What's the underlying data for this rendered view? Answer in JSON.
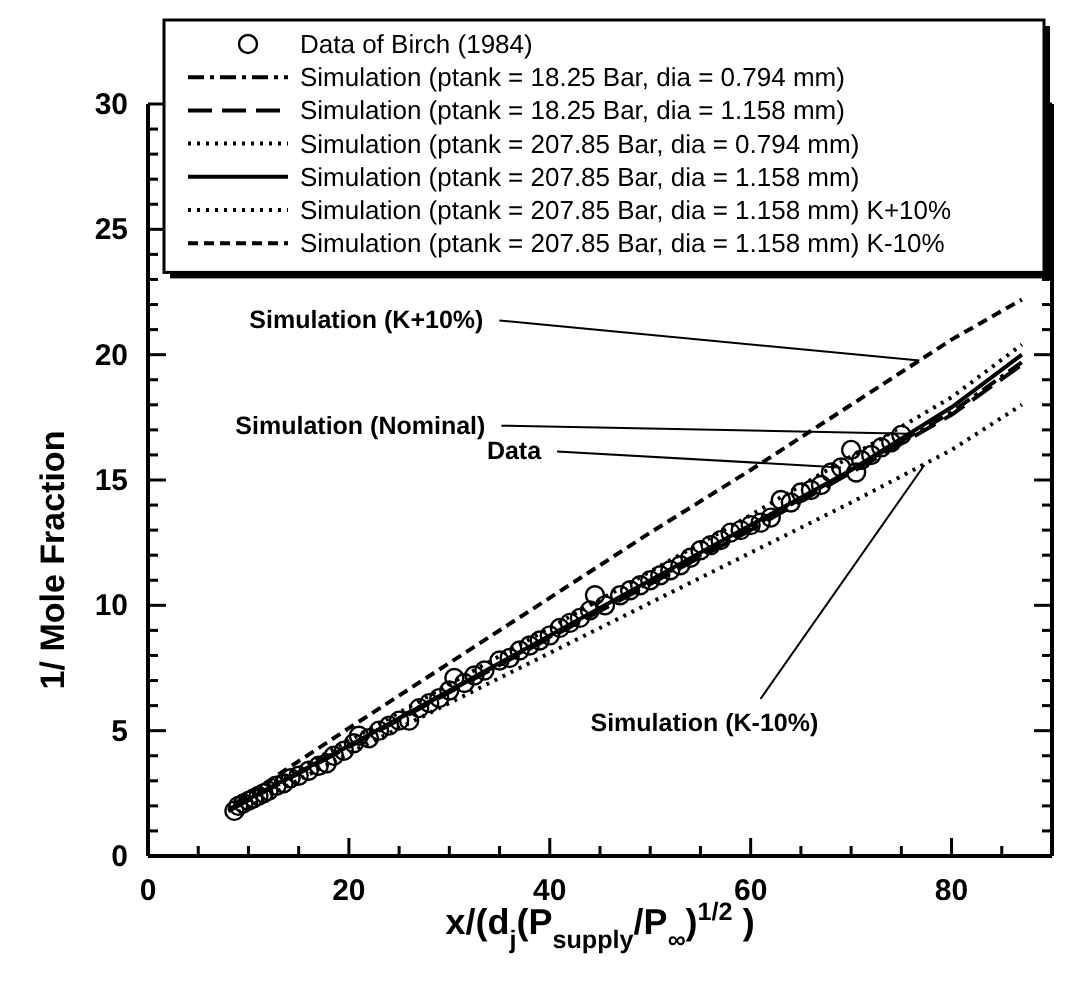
{
  "chart_data": {
    "type": "line",
    "xlabel": "x/(d$_{j}$(P$_{supply}$/P$_{∞}$)$^{1/2}$ )",
    "ylabel": "1/ Mole Fraction",
    "xlim": [
      0,
      90
    ],
    "ylim": [
      0,
      30
    ],
    "xticks": [
      0,
      {
        "value": 5,
        "label": null
      },
      {
        "value": 10,
        "label": null
      },
      {
        "value": 15,
        "label": null
      },
      20,
      {
        "value": 25,
        "label": null
      },
      {
        "value": 30,
        "label": null
      },
      {
        "value": 35,
        "label": null
      },
      40,
      {
        "value": 45,
        "label": null
      },
      {
        "value": 50,
        "label": null
      },
      {
        "value": 55,
        "label": null
      },
      60,
      {
        "value": 65,
        "label": null
      },
      {
        "value": 70,
        "label": null
      },
      {
        "value": 75,
        "label": null
      },
      80,
      {
        "value": 85,
        "label": null
      }
    ],
    "yticks": [
      0,
      {
        "value": 1,
        "label": null
      },
      {
        "value": 2,
        "label": null
      },
      {
        "value": 3,
        "label": null
      },
      {
        "value": 4,
        "label": null
      },
      5,
      {
        "value": 6,
        "label": null
      },
      {
        "value": 7,
        "label": null
      },
      {
        "value": 8,
        "label": null
      },
      {
        "value": 9,
        "label": null
      },
      10,
      {
        "value": 11,
        "label": null
      },
      {
        "value": 12,
        "label": null
      },
      {
        "value": 13,
        "label": null
      },
      {
        "value": 14,
        "label": null
      },
      15,
      {
        "value": 16,
        "label": null
      },
      {
        "value": 17,
        "label": null
      },
      {
        "value": 18,
        "label": null
      },
      {
        "value": 19,
        "label": null
      },
      20,
      {
        "value": 21,
        "label": null
      },
      {
        "value": 22,
        "label": null
      },
      {
        "value": 23,
        "label": null
      },
      {
        "value": 24,
        "label": null
      },
      25,
      {
        "value": 26,
        "label": null
      },
      {
        "value": 27,
        "label": null
      },
      {
        "value": 28,
        "label": null
      },
      {
        "value": 29,
        "label": null
      },
      30
    ],
    "grid": false,
    "legend": "top",
    "series": [
      {
        "name": "Data of Birch (1984)",
        "type": "scatter",
        "marker": "circle",
        "color": "#000000",
        "x": [
          8.6,
          9.0,
          9.5,
          10,
          10.5,
          11,
          11.5,
          12,
          12.8,
          13.5,
          14.2,
          15,
          16,
          17,
          17.8,
          18.5,
          19.5,
          20.5,
          21,
          22,
          23,
          24,
          25,
          26,
          27,
          28,
          29,
          30,
          30.5,
          31.5,
          32.5,
          33.5,
          35,
          36,
          37,
          38,
          39,
          40,
          41,
          42,
          43,
          44,
          44.5,
          45.5,
          47,
          48,
          49,
          50,
          51,
          52,
          53,
          54,
          55,
          56,
          57,
          58,
          59,
          60,
          61,
          62,
          63,
          64,
          65,
          66,
          67,
          68,
          69,
          70,
          70.5,
          71,
          72,
          73,
          74,
          75
        ],
        "values": [
          1.8,
          2.0,
          2.1,
          2.2,
          2.3,
          2.4,
          2.5,
          2.6,
          2.8,
          2.9,
          3.1,
          3.2,
          3.4,
          3.6,
          3.7,
          4.0,
          4.2,
          4.5,
          4.8,
          4.7,
          5.0,
          5.2,
          5.4,
          5.4,
          5.9,
          6.1,
          6.3,
          6.6,
          7.1,
          6.9,
          7.2,
          7.4,
          7.8,
          7.9,
          8.2,
          8.4,
          8.6,
          8.8,
          9.1,
          9.3,
          9.5,
          9.8,
          10.4,
          10.0,
          10.4,
          10.6,
          10.8,
          11.0,
          11.2,
          11.4,
          11.6,
          11.9,
          12.2,
          12.4,
          12.6,
          12.9,
          13.0,
          13.2,
          13.3,
          13.5,
          14.2,
          14.1,
          14.5,
          14.6,
          14.8,
          15.3,
          15.5,
          16.2,
          15.3,
          15.8,
          16.0,
          16.3,
          16.5,
          16.8
        ]
      },
      {
        "name": "Simulation (ptank = 18.25 Bar, dia = 0.794 mm)",
        "line_style": "dashdot",
        "color": "#000000",
        "x": [
          8,
          20,
          40,
          60,
          80,
          87
        ],
        "values": [
          1.8,
          4.4,
          8.75,
          13.1,
          17.7,
          19.7
        ]
      },
      {
        "name": "Simulation (ptank = 18.25 Bar, dia = 1.158 mm)",
        "line_style": "longdash",
        "color": "#000000",
        "x": [
          8,
          20,
          40,
          60,
          80,
          87
        ],
        "values": [
          1.8,
          4.35,
          8.7,
          13.0,
          17.6,
          19.6
        ]
      },
      {
        "name": "Simulation (ptank = 207.85 Bar, dia = 0.794 mm)",
        "line_style": "dotted",
        "color": "#000000",
        "x": [
          8,
          20,
          40,
          60,
          80,
          87
        ],
        "values": [
          1.95,
          4.6,
          9.1,
          13.6,
          18.3,
          20.4
        ]
      },
      {
        "name": "Simulation (ptank = 207.85 Bar, dia = 1.158 mm)",
        "line_style": "solid",
        "color": "#000000",
        "x": [
          8,
          20,
          30,
          40,
          50,
          60,
          70,
          80,
          87
        ],
        "values": [
          1.85,
          4.4,
          6.6,
          8.8,
          11.0,
          13.2,
          15.4,
          17.9,
          20.0
        ]
      },
      {
        "name": "Simulation (ptank = 207.85 Bar, dia = 1.158 mm) K+10%",
        "line_style": "dotted",
        "color": "#000000",
        "x": [
          9,
          20,
          30,
          40,
          50,
          60,
          70,
          80,
          87
        ],
        "values": [
          1.75,
          4.1,
          6.1,
          8.1,
          10.1,
          12.1,
          14.1,
          16.2,
          18.0
        ]
      },
      {
        "name": "Simulation (ptank = 207.85 Bar, dia = 1.158 mm) K-10%",
        "line_style": "dashed",
        "color": "#000000",
        "x": [
          9,
          20,
          30,
          40,
          50,
          60,
          70,
          80,
          87
        ],
        "values": [
          2.2,
          5.1,
          7.7,
          10.3,
          12.9,
          15.4,
          18.0,
          20.6,
          22.2
        ]
      }
    ],
    "annotations": [
      {
        "text": "Simulation (K+10%)",
        "x": 76.8,
        "y": 19.77
      },
      {
        "text": "Simulation (Nominal)",
        "x": 75.8,
        "y": 16.85
      },
      {
        "text": "Data",
        "x": 69,
        "y": 15.5
      },
      {
        "text": "Simulation (K-10%)",
        "x": 77.3,
        "y": 15.6
      }
    ]
  }
}
